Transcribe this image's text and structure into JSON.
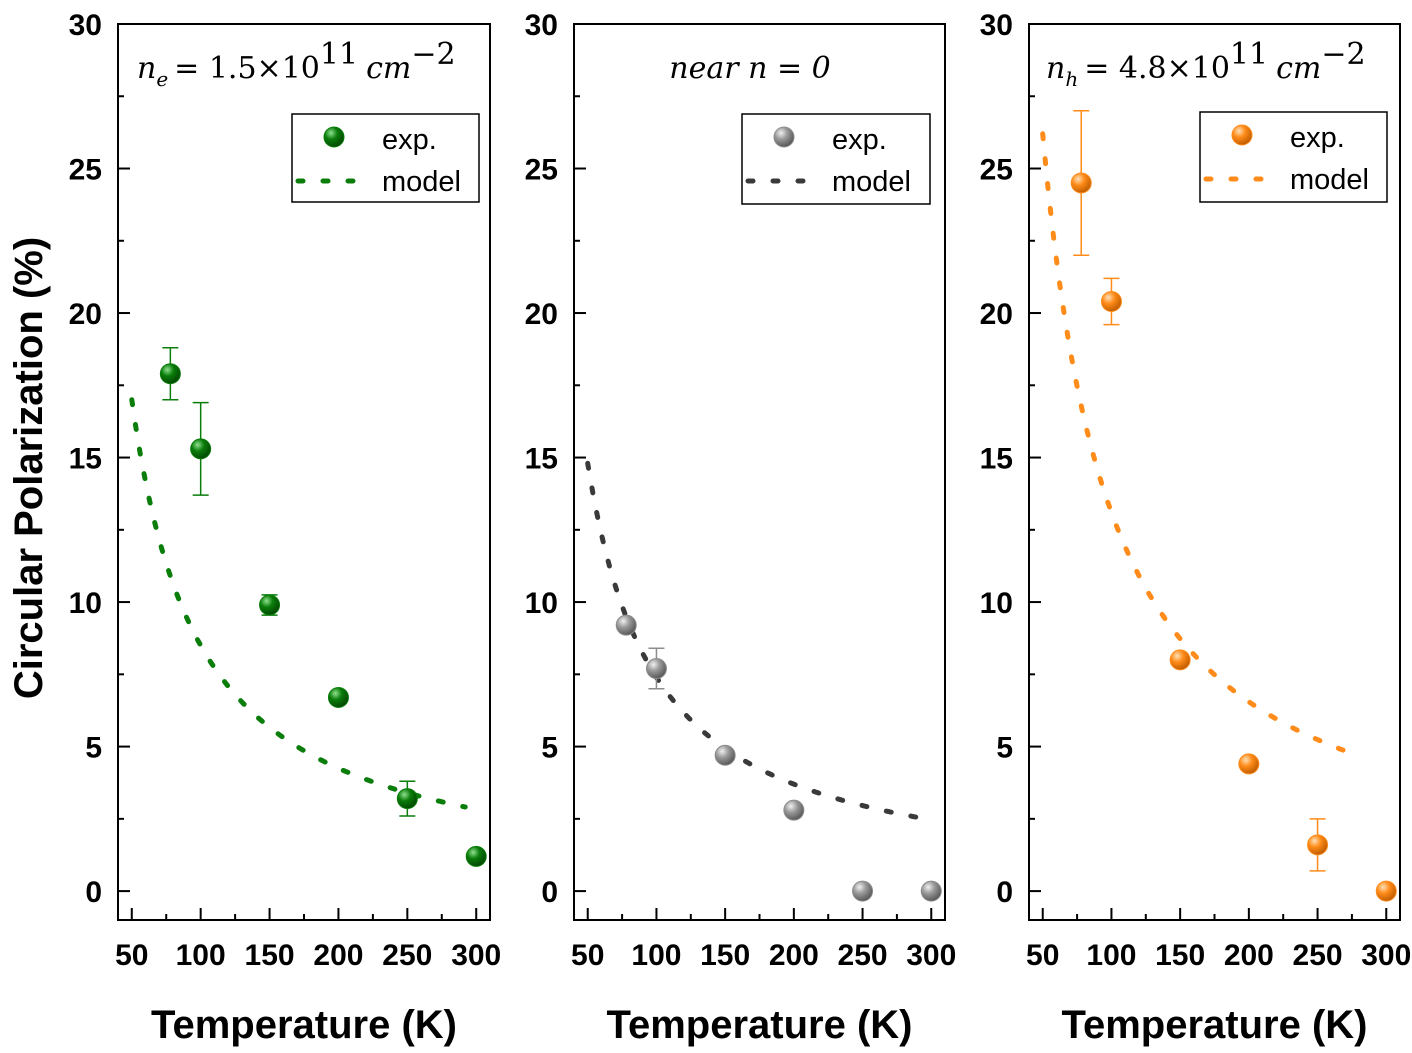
{
  "ylabel": "Circular Polarization (%)",
  "chart_data": [
    {
      "type": "scatter",
      "color": "#0a7d0a",
      "annotation": {
        "n": "n",
        "sub": "e",
        "eq": "= 1.5×10",
        "sup": "11",
        "unit": "cm",
        "unit_sup": "−2"
      },
      "xlabel": "Temperature (K)",
      "xlim": [
        40,
        310
      ],
      "ylim": [
        -1,
        30
      ],
      "xticks": [
        50,
        100,
        150,
        200,
        250,
        300
      ],
      "yticks": [
        0,
        5,
        10,
        15,
        20,
        25,
        30
      ],
      "legend": {
        "exp_label": "exp.",
        "model_label": "model",
        "position": "top-right"
      },
      "exp": {
        "x": [
          78,
          100,
          150,
          200,
          250,
          300
        ],
        "y": [
          17.9,
          15.3,
          9.9,
          6.7,
          3.2,
          1.2
        ],
        "err": [
          0.9,
          1.6,
          0.35,
          0.15,
          0.6,
          0.2
        ]
      },
      "model": {
        "A": 850,
        "p": 1.0,
        "x_start": 50,
        "x_end": 292
      }
    },
    {
      "type": "scatter",
      "color": "#8c8c8c",
      "line_color": "#3a3a3a",
      "annotation": {
        "text": "near n = 0"
      },
      "xlabel": "Temperature (K)",
      "xlim": [
        40,
        310
      ],
      "ylim": [
        -1,
        30
      ],
      "xticks": [
        50,
        100,
        150,
        200,
        250,
        300
      ],
      "yticks": [
        0,
        5,
        10,
        15,
        20,
        25,
        30
      ],
      "legend": {
        "exp_label": "exp.",
        "model_label": "model",
        "position": "top-right"
      },
      "exp": {
        "x": [
          78,
          100,
          150,
          200,
          250,
          300
        ],
        "y": [
          9.2,
          7.7,
          4.7,
          2.8,
          0.0,
          0.0
        ],
        "err": [
          0.15,
          0.7,
          0.15,
          0.1,
          0.0,
          0.0
        ]
      },
      "model": {
        "A": 740,
        "p": 1.0,
        "x_start": 50,
        "x_end": 290
      }
    },
    {
      "type": "scatter",
      "color": "#ff8c1a",
      "annotation": {
        "n": "n",
        "sub": "h",
        "eq": "= 4.8×10",
        "sup": "11",
        "unit": "cm",
        "unit_sup": "−2"
      },
      "xlabel": "Temperature (K)",
      "xlim": [
        40,
        310
      ],
      "ylim": [
        -1,
        30
      ],
      "xticks": [
        50,
        100,
        150,
        200,
        250,
        300
      ],
      "yticks": [
        0,
        5,
        10,
        15,
        20,
        25,
        30
      ],
      "legend": {
        "exp_label": "exp.",
        "model_label": "model",
        "position": "top-right"
      },
      "exp": {
        "x": [
          78,
          100,
          150,
          200,
          250,
          300
        ],
        "y": [
          24.5,
          20.4,
          8.0,
          4.4,
          1.6,
          0.0
        ],
        "err": [
          2.5,
          0.8,
          0.0,
          0.0,
          0.9,
          0.0
        ]
      },
      "model": {
        "A": 1310,
        "p": 1.0,
        "x_start": 50,
        "x_end": 280
      }
    }
  ]
}
